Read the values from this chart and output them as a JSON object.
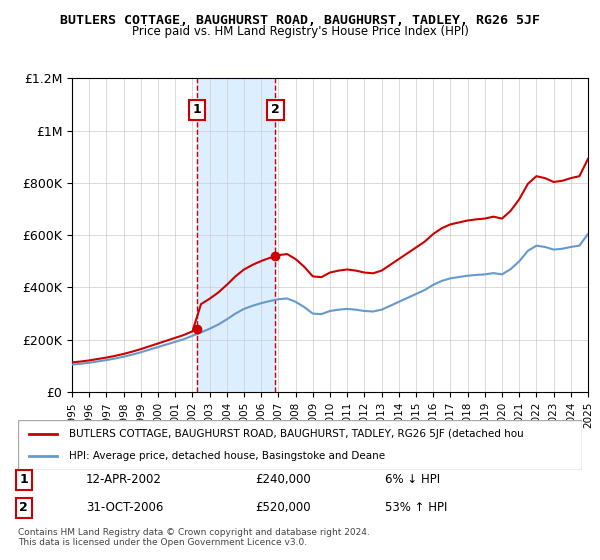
{
  "title": "BUTLERS COTTAGE, BAUGHURST ROAD, BAUGHURST, TADLEY, RG26 5JF",
  "subtitle": "Price paid vs. HM Land Registry's House Price Index (HPI)",
  "legend_line1": "BUTLERS COTTAGE, BAUGHURST ROAD, BAUGHURST, TADLEY, RG26 5JF (detached hou",
  "legend_line2": "HPI: Average price, detached house, Basingstoke and Deane",
  "footer1": "Contains HM Land Registry data © Crown copyright and database right 2024.",
  "footer2": "This data is licensed under the Open Government Licence v3.0.",
  "transaction1_label": "1",
  "transaction1_date": "12-APR-2002",
  "transaction1_price": "£240,000",
  "transaction1_hpi": "6% ↓ HPI",
  "transaction2_label": "2",
  "transaction2_date": "31-OCT-2006",
  "transaction2_price": "£520,000",
  "transaction2_hpi": "53% ↑ HPI",
  "red_line_color": "#cc0000",
  "blue_line_color": "#6699cc",
  "background_color": "#ffffff",
  "plot_bg_color": "#ffffff",
  "shaded_region_color": "#ddeeff",
  "grid_color": "#cccccc",
  "marker1_x": 2002.28,
  "marker1_y": 240000,
  "marker2_x": 2006.83,
  "marker2_y": 520000,
  "vline1_x": 2002.28,
  "vline2_x": 2006.83,
  "xmin": 1995,
  "xmax": 2025,
  "ymin": 0,
  "ymax": 1200000,
  "yticks": [
    0,
    200000,
    400000,
    600000,
    800000,
    1000000,
    1200000
  ],
  "ytick_labels": [
    "£0",
    "£200K",
    "£400K",
    "£600K",
    "£800K",
    "£1M",
    "£1.2M"
  ],
  "xticks": [
    1995,
    1996,
    1997,
    1998,
    1999,
    2000,
    2001,
    2002,
    2003,
    2004,
    2005,
    2006,
    2007,
    2008,
    2009,
    2010,
    2011,
    2012,
    2013,
    2014,
    2015,
    2016,
    2017,
    2018,
    2019,
    2020,
    2021,
    2022,
    2023,
    2024,
    2025
  ]
}
